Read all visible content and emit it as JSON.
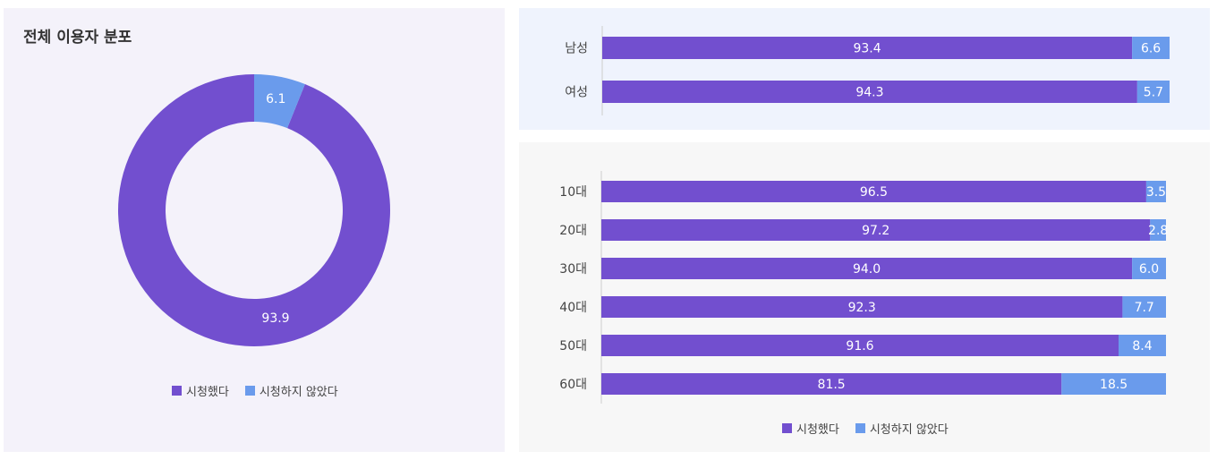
{
  "colors": {
    "watched": "#724fcf",
    "not_watched": "#6a9bec"
  },
  "legend": {
    "watched": "시청했다",
    "not_watched": "시청하지 않았다"
  },
  "chart_data": [
    {
      "type": "pie",
      "title": "전체 이용자 분포",
      "slices": [
        {
          "label": "시청했다",
          "value": 93.9
        },
        {
          "label": "시청하지 않았다",
          "value": 6.1
        }
      ]
    },
    {
      "type": "bar",
      "orientation": "horizontal",
      "stacked": true,
      "categories": [
        "남성",
        "여성"
      ],
      "series": [
        {
          "name": "시청했다",
          "values": [
            93.4,
            94.3
          ]
        },
        {
          "name": "시청하지 않았다",
          "values": [
            6.6,
            5.7
          ]
        }
      ],
      "xlim": [
        0,
        100
      ]
    },
    {
      "type": "bar",
      "orientation": "horizontal",
      "stacked": true,
      "categories": [
        "10대",
        "20대",
        "30대",
        "40대",
        "50대",
        "60대"
      ],
      "series": [
        {
          "name": "시청했다",
          "values": [
            96.5,
            97.2,
            94.0,
            92.3,
            91.6,
            81.5
          ]
        },
        {
          "name": "시청하지 않았다",
          "values": [
            3.5,
            2.8,
            6.0,
            7.7,
            8.4,
            18.5
          ]
        }
      ],
      "xlim": [
        0,
        100
      ],
      "legend_position": "bottom"
    }
  ]
}
